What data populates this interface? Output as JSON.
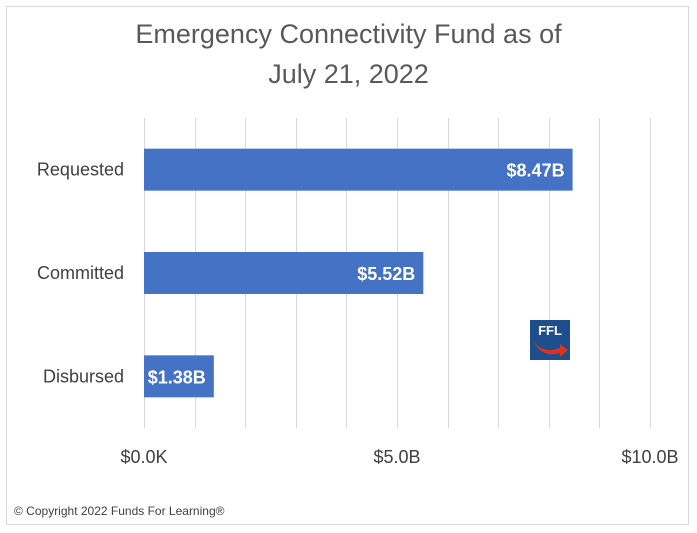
{
  "chart_data": {
    "type": "bar",
    "orientation": "horizontal",
    "title_lines": [
      "Emergency Connectivity Fund as of",
      "July 21, 2022"
    ],
    "categories": [
      "Requested",
      "Committed",
      "Disbursed"
    ],
    "values": [
      8.47,
      5.52,
      1.38
    ],
    "value_unit": "billion USD",
    "data_labels": [
      "$8.47B",
      "$5.52B",
      "$1.38B"
    ],
    "xlim": [
      0,
      10
    ],
    "x_ticks": [
      {
        "value": 0,
        "label": "$0.0K"
      },
      {
        "value": 5,
        "label": "$5.0B"
      },
      {
        "value": 10,
        "label": "$10.0B"
      }
    ],
    "minor_grid_step": 1,
    "grid": true,
    "legend": "none",
    "bar_color": "#4472c4",
    "label_color": "#ffffff"
  },
  "footer": {
    "copyright": "© Copyright 2022 Funds For Learning®"
  },
  "logo": {
    "text": "FFL",
    "icon": "ffl-logo-icon"
  }
}
